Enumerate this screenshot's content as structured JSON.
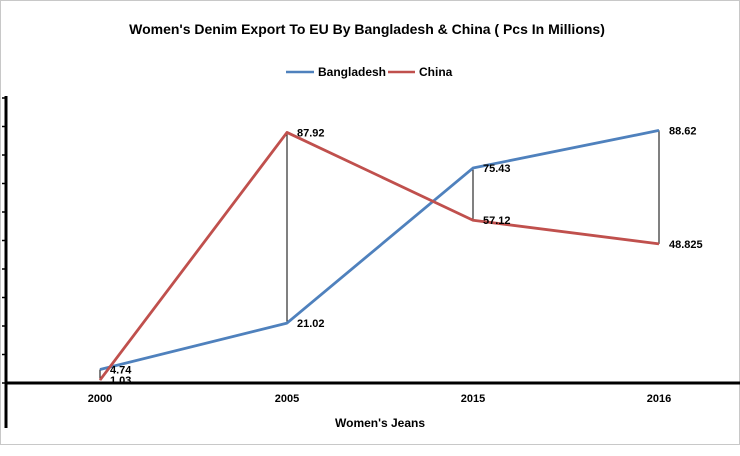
{
  "chart_data": {
    "type": "line",
    "title": "Women's Denim Export To EU By Bangladesh & China ( Pcs In Millions)",
    "xlabel": "Women's Jeans",
    "ylabel": "",
    "categories": [
      "2000",
      "2005",
      "2015",
      "2016"
    ],
    "ylim": [
      0,
      100
    ],
    "grid": false,
    "legend": "top",
    "drop_lines": true,
    "series": [
      {
        "name": "Bangladesh",
        "color": "#4F81BD",
        "values": [
          4.74,
          21.02,
          75.43,
          88.62
        ],
        "labels": [
          "4.74",
          "21.02",
          "75.43",
          "88.62"
        ]
      },
      {
        "name": "China",
        "color": "#C0504D",
        "values": [
          1.03,
          87.92,
          57.12,
          48.825
        ],
        "labels": [
          "1.03",
          "87.92",
          "57.12",
          "48.825"
        ]
      }
    ]
  }
}
